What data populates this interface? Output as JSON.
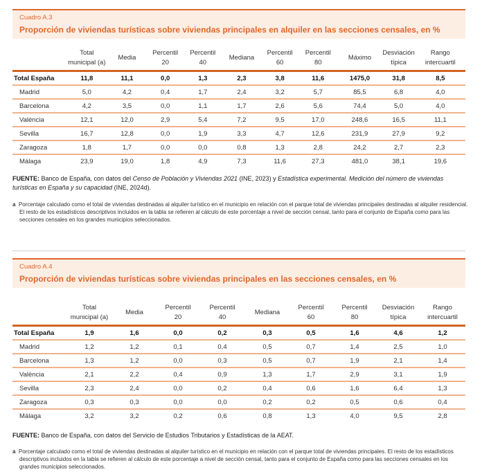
{
  "columns": [
    [
      "Total",
      "municipal (a)"
    ],
    [
      "Media"
    ],
    [
      "Percentil",
      "20"
    ],
    [
      "Percentil",
      "40"
    ],
    [
      "Mediana"
    ],
    [
      "Percentil",
      "60"
    ],
    [
      "Percentil",
      "80"
    ],
    [
      "Máximo"
    ],
    [
      "Desviación",
      "típica"
    ],
    [
      "Rango",
      "intercuartil"
    ]
  ],
  "table_a3": {
    "label": "Cuadro A.3",
    "title": "Proporción de viviendas turísticas sobre viviendas principales en alquiler en las secciones censales, en %",
    "columns": [
      [
        "Total",
        "municipal (a)"
      ],
      [
        "Media"
      ],
      [
        "Percentil",
        "20"
      ],
      [
        "Percentil",
        "40"
      ],
      [
        "Mediana"
      ],
      [
        "Percentil",
        "60"
      ],
      [
        "Percentil",
        "80"
      ],
      [
        "Máximo"
      ],
      [
        "Desviación",
        "típica"
      ],
      [
        "Rango",
        "intercuartil"
      ]
    ],
    "rows": [
      {
        "name": "Total España",
        "values": [
          "11,8",
          "11,1",
          "0,0",
          "1,3",
          "2,3",
          "3,8",
          "11,6",
          "1475,0",
          "31,8",
          "8,5"
        ]
      },
      {
        "name": "Madrid",
        "values": [
          "5,0",
          "4,2",
          "0,4",
          "1,7",
          "2,4",
          "3,2",
          "5,7",
          "85,5",
          "6,8",
          "4,0"
        ]
      },
      {
        "name": "Barcelona",
        "values": [
          "4,2",
          "3,5",
          "0,0",
          "1,1",
          "1,7",
          "2,6",
          "5,6",
          "74,4",
          "5,0",
          "4,0"
        ]
      },
      {
        "name": "València",
        "values": [
          "12,1",
          "12,0",
          "2,9",
          "5,4",
          "7,2",
          "9,5",
          "17,0",
          "248,6",
          "16,5",
          "11,1"
        ]
      },
      {
        "name": "Sevilla",
        "values": [
          "16,7",
          "12,8",
          "0,0",
          "1,9",
          "3,3",
          "4,7",
          "12,6",
          "231,9",
          "27,9",
          "9,2"
        ]
      },
      {
        "name": "Zaragoza",
        "values": [
          "1,8",
          "1,7",
          "0,0",
          "0,0",
          "0,8",
          "1,3",
          "2,8",
          "24,2",
          "2,7",
          "2,3"
        ]
      },
      {
        "name": "Málaga",
        "values": [
          "23,9",
          "19,0",
          "1,8",
          "4,9",
          "7,3",
          "11,6",
          "27,3",
          "481,0",
          "38,1",
          "19,6"
        ]
      }
    ],
    "source_label": "FUENTE:",
    "source_text1": " Banco de España, con datos del ",
    "source_italic1": "Censo de Población y Viviendas 2021",
    "source_text2": " (INE, 2023) y ",
    "source_italic2": "Estadística experimental. Medición del número de viviendas turísticas en España y su capacidad",
    "source_text3": " (INE, 2024d).",
    "note_label": "a",
    "note": "Porcentaje calculado como el total de viviendas destinadas al alquiler turístico en el municipio en relación con el parque total de viviendas principales destinadas al alquiler residencial. El resto de los estadísticos descriptivos incluidos en la tabla se refieren al cálculo de este porcentaje a nivel de sección censal, tanto para el conjunto de España como para las secciones censales en los grandes municipios seleccionados."
  },
  "table_a4": {
    "label": "Cuadro A.4",
    "title": "Proporción de viviendas turísticas sobre viviendas principales en las secciones censales, en %",
    "columns": [
      [
        "Total",
        "municipal (a)"
      ],
      [
        "Media"
      ],
      [
        "Percentil",
        "20"
      ],
      [
        "Percentil",
        "40"
      ],
      [
        "Mediana"
      ],
      [
        "Percentil",
        "60"
      ],
      [
        "Percentil",
        "80"
      ],
      [
        "Desviación",
        "típica"
      ],
      [
        "Rango",
        "intercuartil"
      ]
    ],
    "rows": [
      {
        "name": "Total España",
        "values": [
          "1,9",
          "1,6",
          "0,0",
          "0,2",
          "0,3",
          "0,5",
          "1,6",
          "4,6",
          "1,2"
        ]
      },
      {
        "name": "Madrid",
        "values": [
          "1,2",
          "1,2",
          "0,1",
          "0,4",
          "0,5",
          "0,7",
          "1,4",
          "2,5",
          "1,0"
        ]
      },
      {
        "name": "Barcelona",
        "values": [
          "1,3",
          "1,2",
          "0,0",
          "0,3",
          "0,5",
          "0,7",
          "1,9",
          "2,1",
          "1,4"
        ]
      },
      {
        "name": "València",
        "values": [
          "2,1",
          "2,2",
          "0,4",
          "0,9",
          "1,3",
          "1,7",
          "2,9",
          "3,1",
          "1,9"
        ]
      },
      {
        "name": "Sevilla",
        "values": [
          "2,3",
          "2,4",
          "0,0",
          "0,2",
          "0,4",
          "0,6",
          "1,6",
          "6,4",
          "1,3"
        ]
      },
      {
        "name": "Zaragoza",
        "values": [
          "0,3",
          "0,3",
          "0,0",
          "0,0",
          "0,2",
          "0,2",
          "0,5",
          "0,6",
          "0,4"
        ]
      },
      {
        "name": "Málaga",
        "values": [
          "3,2",
          "3,2",
          "0,2",
          "0,6",
          "0,8",
          "1,3",
          "4,0",
          "9,5",
          "2,8"
        ]
      }
    ],
    "source_label": "FUENTE:",
    "source_text1": " Banco de España, con datos del Servicio de Estudios Tributarios y Estadísticas de la AEAT.",
    "note_label": "a",
    "note": "Porcentaje calculado como el total de viviendas destinadas al alquiler turístico en el municipio en relación con el parque total de viviendas principales. El resto de los estadísticos descriptivos incluidos en la tabla se refieren al cálculo de este porcentaje a nivel de sección censal, tanto para el conjunto de España como para las secciones censales en los grandes municipios seleccionados."
  }
}
